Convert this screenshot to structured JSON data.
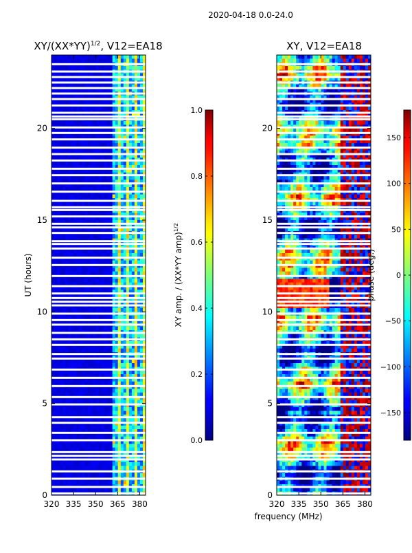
{
  "figure": {
    "suptitle": "2020-04-18 0.0-24.0",
    "xlabel_shared": "frequency (MHz)"
  },
  "chart_data": [
    {
      "type": "heatmap",
      "title_main": "XY/(XX*YY)",
      "title_exp": "1/2",
      "title_rest": ", V12=EA18",
      "xlabel": "frequency (MHz)",
      "ylabel": "UT (hours)",
      "xlim": [
        320,
        384
      ],
      "ylim": [
        0,
        24
      ],
      "xticks": [
        "320",
        "335",
        "350",
        "365",
        "380"
      ],
      "yticks": [
        "0",
        "5",
        "10",
        "15",
        "20"
      ],
      "colormap": "jet",
      "colorbar": {
        "label_main": "XY amp. / (XX*YY amp)",
        "label_exp": "1/2",
        "range": [
          0.0,
          1.0
        ],
        "ticks": [
          "0.0",
          "0.2",
          "0.4",
          "0.6",
          "0.8",
          "1.0"
        ]
      }
    },
    {
      "type": "heatmap",
      "title": "XY, V12=EA18",
      "xlabel": "frequency (MHz)",
      "ylabel": "",
      "xlim": [
        320,
        384
      ],
      "ylim": [
        0,
        24
      ],
      "xticks": [
        "320",
        "335",
        "350",
        "365",
        "380"
      ],
      "yticks": [
        "0",
        "5",
        "10",
        "15",
        "20"
      ],
      "colormap": "jet",
      "colorbar": {
        "label": "phase (deg.)",
        "range": [
          -180,
          180
        ],
        "ticks": [
          "−150",
          "−100",
          "−50",
          "0",
          "50",
          "100",
          "150"
        ]
      }
    }
  ],
  "data_gaps_ut_hours": [
    0.1,
    0.45,
    0.9,
    1.3,
    1.95,
    2.15,
    2.35,
    3.0,
    3.4,
    3.95,
    4.25,
    4.95,
    5.35,
    5.95,
    6.4,
    6.85,
    7.45,
    7.7,
    8.2,
    8.5,
    8.85,
    9.3,
    9.55,
    9.9,
    10.35,
    10.55,
    10.75,
    11.0,
    11.4,
    11.95,
    12.55,
    12.95,
    13.45,
    13.7,
    13.85,
    14.3,
    14.6,
    14.8,
    15.2,
    15.55,
    15.7,
    16.05,
    16.55,
    17.0,
    17.45,
    17.8,
    18.25,
    18.6,
    18.95,
    19.4,
    19.75,
    20.05,
    20.5,
    20.65,
    20.85,
    21.25,
    21.6,
    21.9,
    22.2,
    22.5,
    22.8,
    23.1,
    23.5
  ]
}
